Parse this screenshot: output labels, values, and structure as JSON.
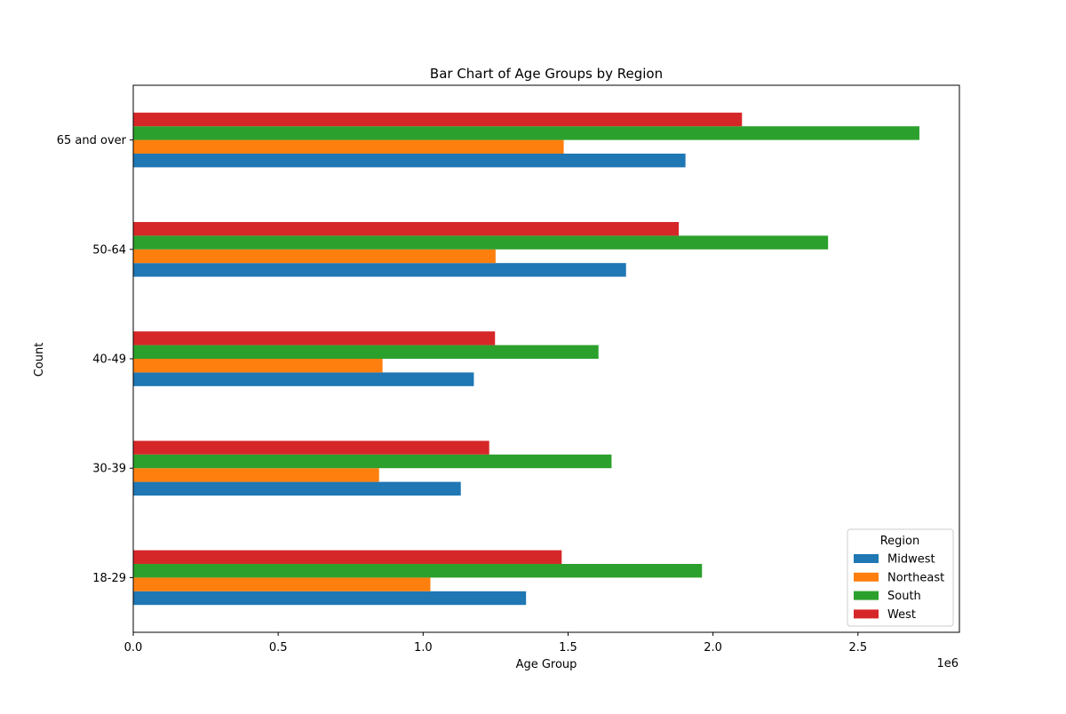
{
  "chart_data": {
    "type": "bar",
    "orientation": "horizontal",
    "title": "Bar Chart of Age Groups by Region",
    "xlabel": "Age Group",
    "ylabel": "Count",
    "x_offset_label": "1e6",
    "xlim": [
      0,
      2850000
    ],
    "x_ticks": [
      0,
      500000,
      1000000,
      1500000,
      2000000,
      2500000
    ],
    "x_tick_labels": [
      "0.0",
      "0.5",
      "1.0",
      "1.5",
      "2.0",
      "2.5"
    ],
    "categories": [
      "18-29",
      "30-39",
      "40-49",
      "50-64",
      "65 and over"
    ],
    "grid": false,
    "legend": {
      "title": "Region",
      "position": "lower-right"
    },
    "series": [
      {
        "name": "Midwest",
        "color": "#1f77b4",
        "values": [
          1355000,
          1130000,
          1175000,
          1700000,
          1905000
        ]
      },
      {
        "name": "Northeast",
        "color": "#ff7f0e",
        "values": [
          1025000,
          848000,
          860000,
          1250000,
          1485000
        ]
      },
      {
        "name": "South",
        "color": "#2ca02c",
        "values": [
          1962000,
          1650000,
          1605000,
          2397000,
          2712000
        ]
      },
      {
        "name": "West",
        "color": "#d62728",
        "values": [
          1478000,
          1228000,
          1248000,
          1882000,
          2100000
        ]
      }
    ]
  }
}
